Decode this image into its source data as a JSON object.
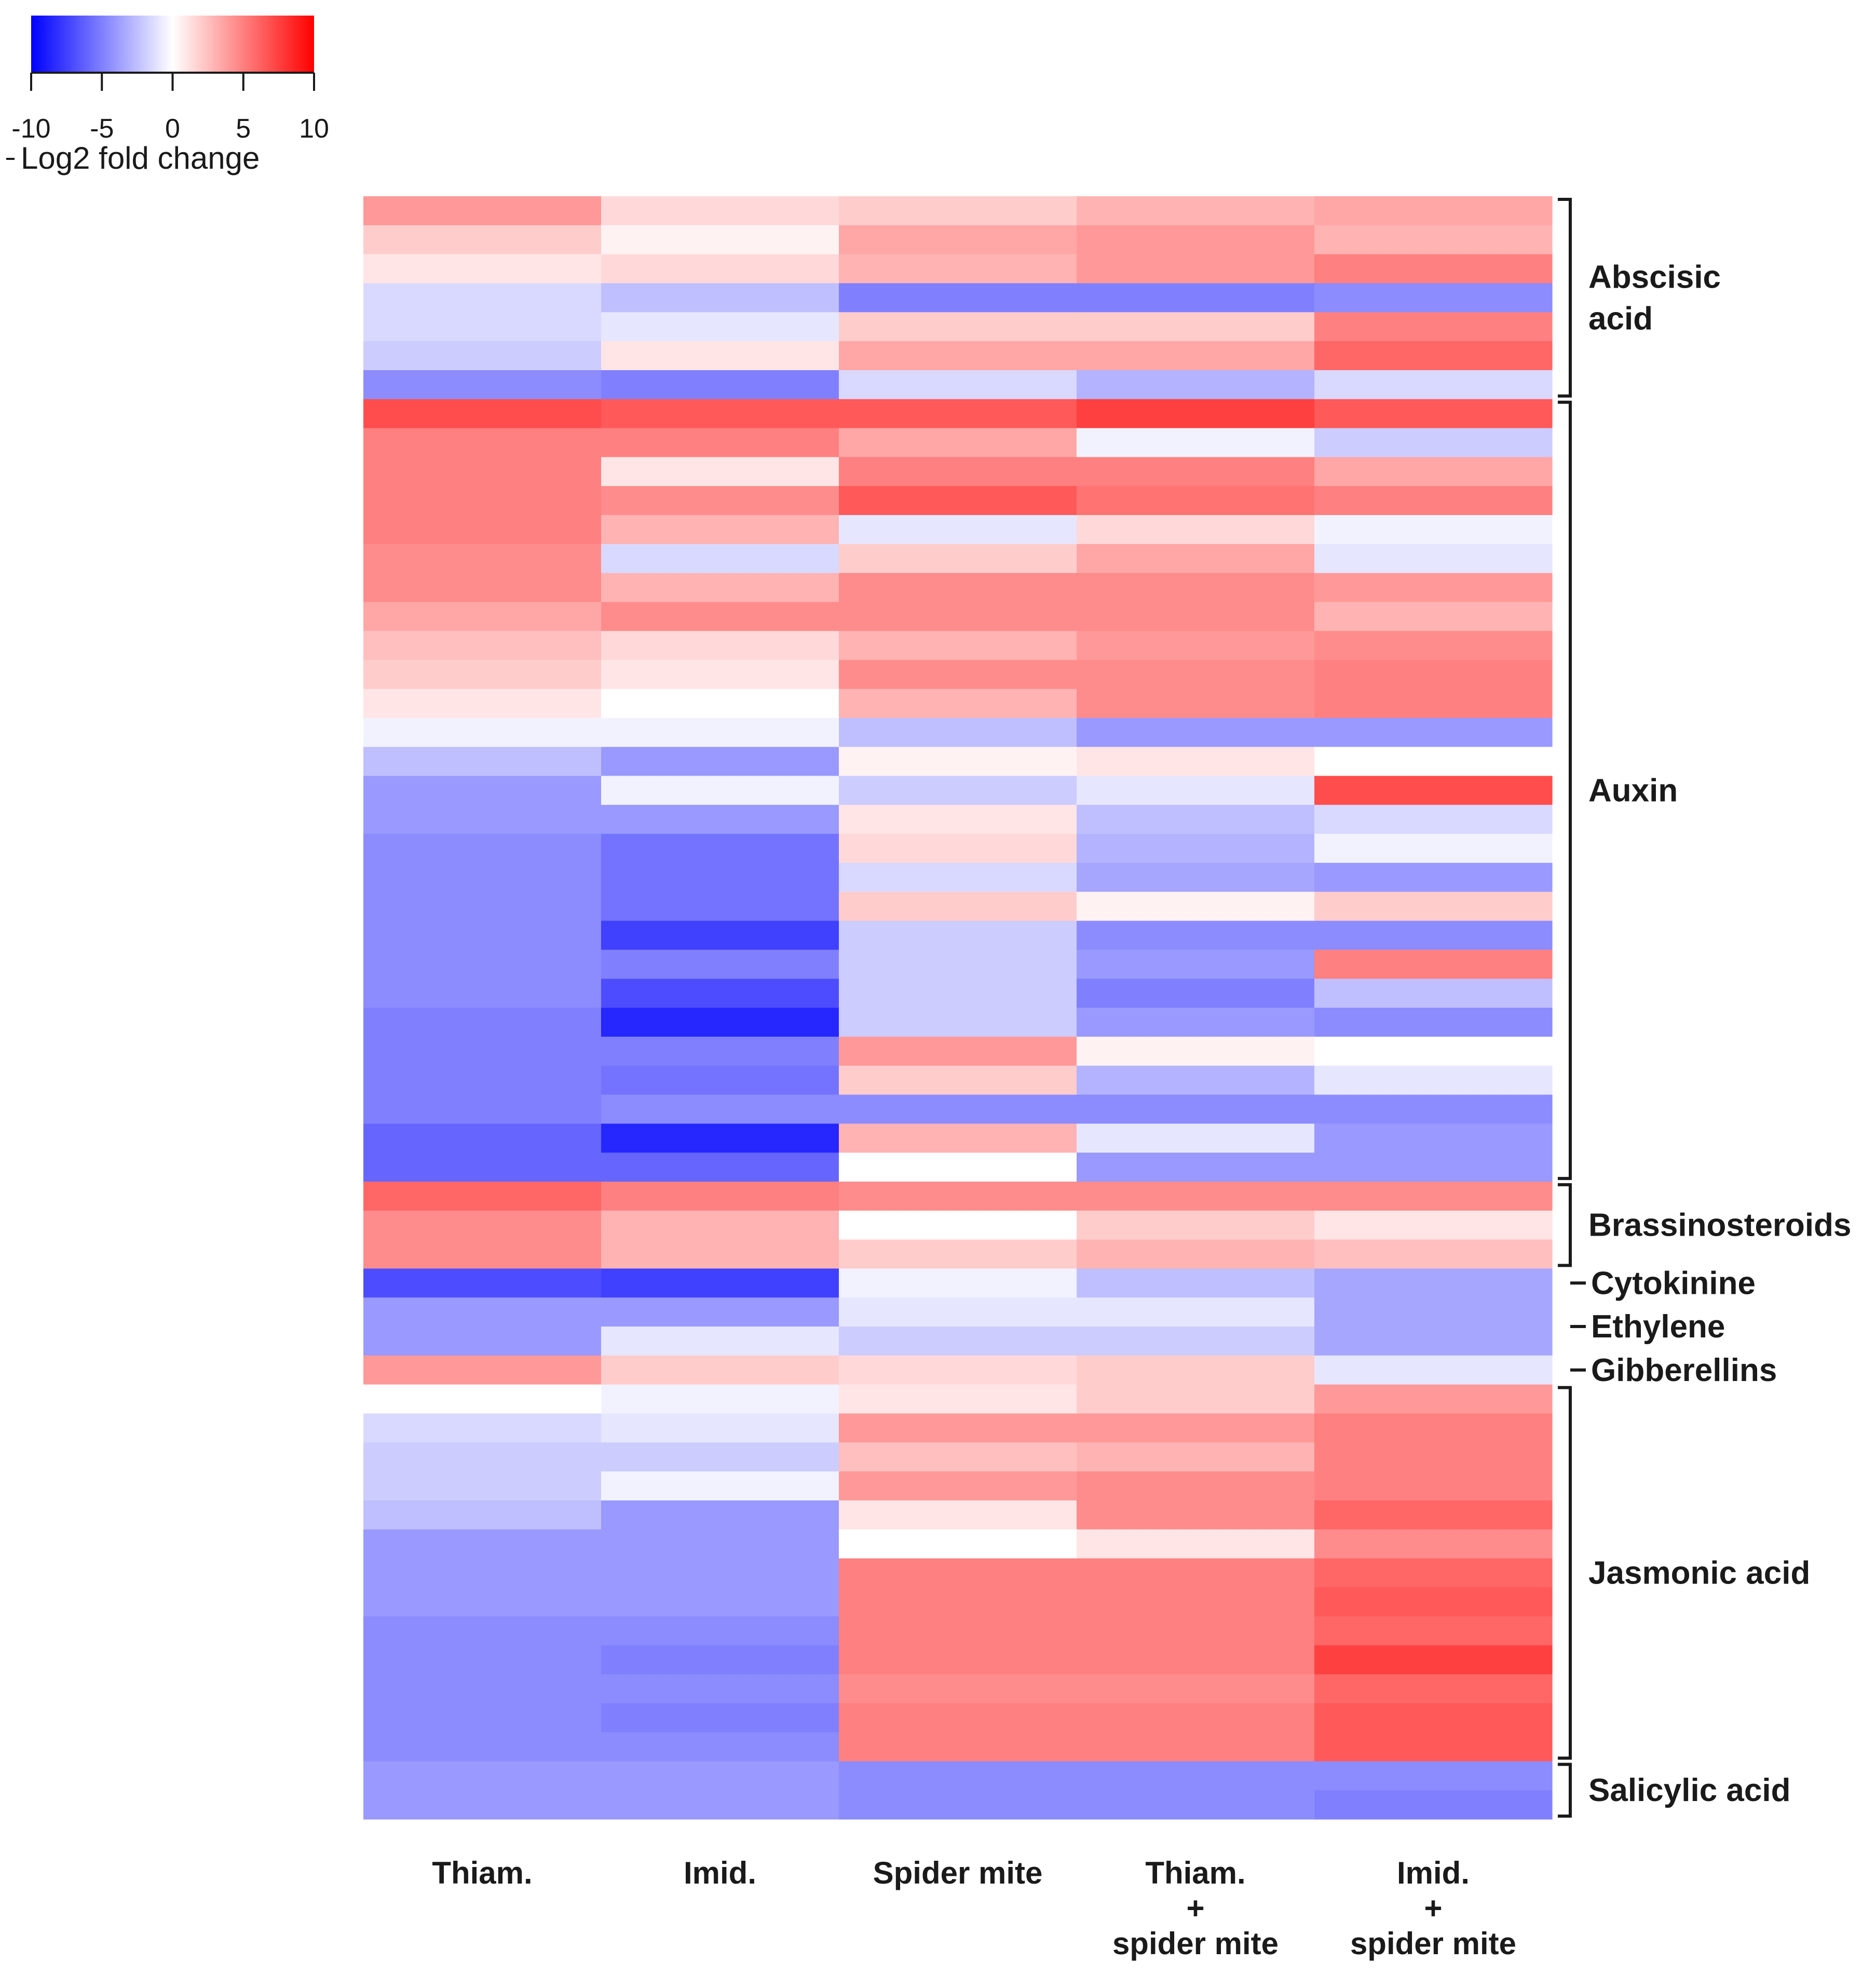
{
  "chart_data": {
    "type": "heatmap",
    "title": "",
    "legend": {
      "title": "Log2 fold change",
      "min": -10,
      "max": 10,
      "ticks": [
        "-10",
        "-5",
        "0",
        "5",
        "10"
      ],
      "colors": {
        "low": "#0000ff",
        "mid": "#ffffff",
        "high": "#ff0000"
      }
    },
    "columns": [
      {
        "lines": [
          "Thiam."
        ]
      },
      {
        "lines": [
          "Imid."
        ]
      },
      {
        "lines": [
          "Spider mite"
        ]
      },
      {
        "lines": [
          "Thiam.",
          "+",
          "spider mite"
        ]
      },
      {
        "lines": [
          "Imid.",
          "+",
          "spider mite"
        ]
      }
    ],
    "groups": [
      {
        "label": [
          "Abscisic",
          "acid"
        ],
        "rows": 7,
        "marker": "bracket"
      },
      {
        "label": [
          "Auxin"
        ],
        "rows": 27,
        "marker": "bracket"
      },
      {
        "label": [
          "Brassinosteroids"
        ],
        "rows": 3,
        "marker": "bracket"
      },
      {
        "label": [
          "Cytokinine"
        ],
        "rows": 1,
        "marker": "tick"
      },
      {
        "label": [
          "Ethylene"
        ],
        "rows": 2,
        "marker": "tick"
      },
      {
        "label": [
          "Gibberellins"
        ],
        "rows": 1,
        "marker": "tick"
      },
      {
        "label": [
          "Jasmonic acid"
        ],
        "rows": 13,
        "marker": "bracket"
      },
      {
        "label": [
          "Salicylic acid"
        ],
        "rows": 2,
        "marker": "bracket"
      }
    ],
    "values": [
      [
        4,
        1.5,
        2,
        3,
        3.5
      ],
      [
        2,
        0.5,
        3.5,
        4,
        3
      ],
      [
        1,
        1.5,
        3,
        4,
        5
      ],
      [
        -1.5,
        -2.5,
        -5,
        -5,
        -4.5
      ],
      [
        -1.5,
        -1,
        2,
        2,
        5
      ],
      [
        -2,
        1,
        3.5,
        3.5,
        6
      ],
      [
        -4.5,
        -5,
        -1.5,
        -3,
        -1.5
      ],
      [
        7,
        6.5,
        6.5,
        7.5,
        6.5
      ],
      [
        5,
        5,
        3.5,
        -0.5,
        -2
      ],
      [
        5,
        1,
        5,
        5,
        3.5
      ],
      [
        5,
        4.5,
        6.5,
        5.5,
        5
      ],
      [
        5,
        3,
        -1,
        1.5,
        -0.5
      ],
      [
        4.5,
        -1.5,
        2,
        3.5,
        -1
      ],
      [
        4.5,
        3,
        4.5,
        4.5,
        4
      ],
      [
        3.5,
        4.5,
        4.5,
        4.5,
        3
      ],
      [
        2.5,
        1.5,
        3,
        4,
        4.5
      ],
      [
        2,
        1,
        4.5,
        4.5,
        5
      ],
      [
        1,
        0,
        3,
        4.5,
        5
      ],
      [
        -0.5,
        -0.5,
        -2.5,
        -4,
        -4
      ],
      [
        -2.5,
        -4,
        0.5,
        1,
        0
      ],
      [
        -4,
        -0.5,
        -2,
        -1,
        7
      ],
      [
        -4,
        -4,
        1,
        -2.5,
        -1.5
      ],
      [
        -4.5,
        -5.5,
        1.5,
        -3,
        -0.5
      ],
      [
        -4.5,
        -5.5,
        -1.5,
        -3.5,
        -4
      ],
      [
        -4.5,
        -5.5,
        2,
        0.5,
        2
      ],
      [
        -4.5,
        -7.5,
        -2,
        -4.5,
        -4.5
      ],
      [
        -4.5,
        -5,
        -2,
        -4,
        5
      ],
      [
        -4.5,
        -7,
        -2,
        -5,
        -2.5
      ],
      [
        -5,
        -8.5,
        -2,
        -4,
        -4.5
      ],
      [
        -5,
        -5,
        4,
        0.5,
        0
      ],
      [
        -5,
        -5.5,
        2,
        -3,
        -1
      ],
      [
        -5,
        -4.5,
        -4.5,
        -4.5,
        -4.5
      ],
      [
        -6,
        -8.5,
        3,
        -1,
        -4
      ],
      [
        -6,
        -6,
        0,
        -4,
        -4
      ],
      [
        6,
        5,
        4.5,
        4.5,
        4.5
      ],
      [
        4.5,
        3,
        0,
        2,
        1
      ],
      [
        4.5,
        3,
        2,
        3,
        2.5
      ],
      [
        -7,
        -7.5,
        -0.5,
        -2.5,
        -3.5
      ],
      [
        -4,
        -4,
        -1,
        -1,
        -3.5
      ],
      [
        -4,
        -1,
        -2,
        -2,
        -3.5
      ],
      [
        4,
        2,
        1.5,
        2,
        -1
      ],
      [
        0,
        -0.5,
        1,
        2,
        4
      ],
      [
        -1.5,
        -1,
        4,
        4,
        5
      ],
      [
        -2,
        -2,
        2.5,
        3,
        5
      ],
      [
        -2,
        -0.5,
        4,
        4.5,
        5
      ],
      [
        -2.5,
        -4,
        1,
        4.5,
        6
      ],
      [
        -4,
        -4,
        0,
        1,
        4.5
      ],
      [
        -4,
        -4,
        5,
        5,
        6
      ],
      [
        -4,
        -4,
        5,
        5,
        6.5
      ],
      [
        -4.5,
        -4.5,
        5,
        5,
        6
      ],
      [
        -4.5,
        -5,
        5,
        5,
        7.5
      ],
      [
        -4.5,
        -4.5,
        4.5,
        4.5,
        6
      ],
      [
        -4.5,
        -5,
        5,
        5,
        6.5
      ],
      [
        -4.5,
        -4.5,
        5,
        5,
        6.5
      ],
      [
        -4,
        -4,
        -4.5,
        -4.5,
        -4.5
      ],
      [
        -4,
        -4,
        -4.5,
        -4.5,
        -5
      ]
    ]
  }
}
